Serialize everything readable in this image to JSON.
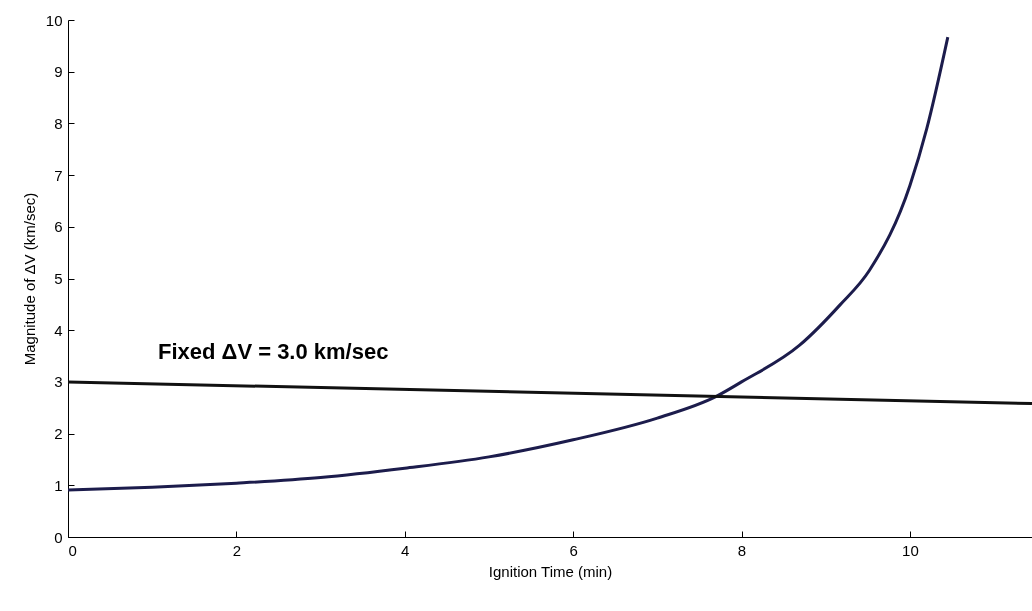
{
  "chart_data": {
    "type": "line",
    "xlabel": "Ignition Time (min)",
    "ylabel": "Magnitude of ΔV  (km/sec)",
    "xlim": [
      0,
      11.45
    ],
    "ylim": [
      0,
      10
    ],
    "xticks": [
      0,
      2,
      4,
      6,
      8,
      10
    ],
    "yticks": [
      0,
      1,
      2,
      3,
      4,
      5,
      6,
      7,
      8,
      9,
      10
    ],
    "grid": false,
    "series": [
      {
        "type": "line",
        "color": "#1c1c4c",
        "x": [
          0,
          1,
          2,
          3,
          4,
          5,
          6,
          7,
          7.7,
          8,
          8.69,
          9.17,
          9.52,
          10,
          10.2,
          10.45
        ],
        "values": [
          0.91,
          0.96,
          1.04,
          1.15,
          1.33,
          1.55,
          1.88,
          2.3,
          2.72,
          3.0,
          3.71,
          4.49,
          5.16,
          6.8,
          7.9,
          9.67
        ]
      },
      {
        "type": "line",
        "color": "#111111",
        "x": [
          0,
          11.45
        ],
        "values": [
          3.0,
          2.58
        ]
      }
    ],
    "annotations": [
      "Fixed ΔV = 3.0 km/sec"
    ]
  }
}
